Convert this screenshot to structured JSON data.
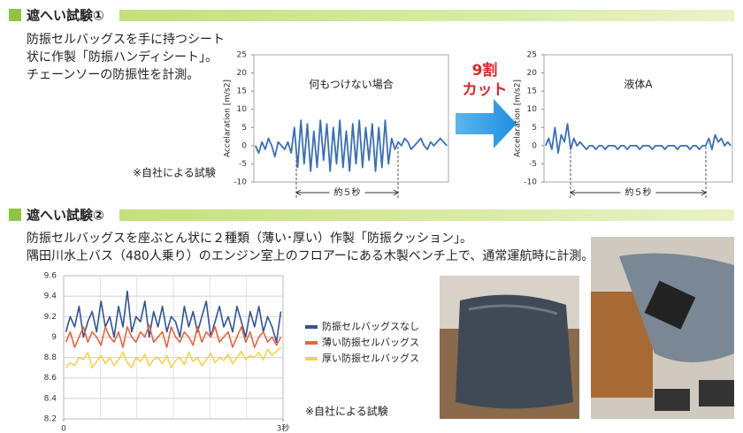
{
  "sections": [
    {
      "title": "遮へい試験①",
      "lines": [
        "防振セルバッグスを手に持つシート",
        "状に作製「防振ハンディシート」。",
        "チェーンソーの防振性を計測。"
      ],
      "note": "※自社による試験"
    },
    {
      "title": "遮へい試験②",
      "lines": [
        "防振セルバッグスを座ぶとん状に２種類（薄い･厚い）作製「防振クッション」。",
        "隅田川水上バス（480人乗り）のエンジン室上のフロアーにある木製ベンチ上で、通常運航時に計測。"
      ],
      "note": "※自社による試験"
    }
  ],
  "callout": [
    "9割",
    "カット"
  ],
  "chart_data": [
    {
      "type": "line",
      "title": "何もつけない場合",
      "y_label": "Accelaration [m/s2]",
      "annotation": "約５秒",
      "ylim": [
        -10,
        25
      ],
      "yticks": [
        25,
        20,
        15,
        10,
        5,
        0,
        -5,
        -10
      ],
      "series": [
        {
          "color": "#3a6fb6",
          "values": [
            0,
            -2,
            1,
            -1,
            2,
            0,
            -3,
            1,
            0,
            -1,
            1,
            -2,
            5,
            -6,
            7,
            -5,
            6,
            -7,
            4,
            -6,
            7,
            -4,
            6,
            -7,
            5,
            -5,
            7,
            -6,
            4,
            -7,
            6,
            -5,
            7,
            -6,
            5,
            -4,
            6,
            -7,
            5,
            -6,
            7,
            -5,
            2,
            -1,
            1,
            0,
            2,
            1,
            -1,
            0,
            1,
            2,
            0,
            -1,
            1,
            0,
            1,
            2,
            1,
            0
          ]
        }
      ]
    },
    {
      "type": "line",
      "title": "液体A",
      "y_label": "Accelaration [m/s2]",
      "annotation": "約５秒",
      "ylim": [
        -10,
        25
      ],
      "yticks": [
        25,
        20,
        15,
        10,
        5,
        0,
        -5,
        -10
      ],
      "series": [
        {
          "color": "#3a6fb6",
          "values": [
            0,
            2,
            -1,
            5,
            -2,
            3,
            1,
            6,
            -1,
            2,
            0,
            1,
            0,
            -1,
            0,
            0,
            -1,
            0,
            0,
            -1,
            0,
            0,
            0,
            -1,
            0,
            0,
            -1,
            0,
            0,
            0,
            -1,
            0,
            0,
            0,
            -1,
            0,
            0,
            0,
            -1,
            0,
            0,
            0,
            -1,
            0,
            0,
            0,
            -1,
            0,
            0,
            -1,
            0,
            0,
            2,
            -1,
            3,
            1,
            2,
            0,
            1,
            0
          ]
        }
      ]
    },
    {
      "type": "line",
      "xlim": [
        0,
        3
      ],
      "xticks": [
        0,
        {
          "value": 3,
          "label": "3秒"
        }
      ],
      "ylim": [
        8.2,
        9.6
      ],
      "yticks": [
        9.6,
        9.4,
        9.2,
        9,
        8.8,
        8.6,
        8.4,
        8.2
      ],
      "grid": true,
      "series": [
        {
          "name": "防振セルバッグスなし",
          "color": "#2f5597",
          "values": [
            9.05,
            9.2,
            9.1,
            9.3,
            9.0,
            9.15,
            9.25,
            9.05,
            9.35,
            9.1,
            9.2,
            9.0,
            9.3,
            9.1,
            9.45,
            9.05,
            9.2,
            9.15,
            9.35,
            9.0,
            9.25,
            9.1,
            9.3,
            9.05,
            9.2,
            9.15,
            9.0,
            9.3,
            9.1,
            9.25,
            9.05,
            9.2,
            9.35,
            9.0,
            9.15,
            9.3,
            9.1,
            9.2,
            9.05,
            9.3,
            9.15,
            9.0,
            9.25,
            9.1,
            9.3,
            9.05,
            9.2,
            9.1,
            8.95,
            9.25
          ]
        },
        {
          "name": "薄い防振セルバッグス",
          "color": "#e8643c",
          "values": [
            8.95,
            9.05,
            8.9,
            9.0,
            9.1,
            8.95,
            9.05,
            9.0,
            8.92,
            9.1,
            9.0,
            8.95,
            9.05,
            8.9,
            9.1,
            9.0,
            8.95,
            9.05,
            9.0,
            9.12,
            8.95,
            9.0,
            9.05,
            8.9,
            9.1,
            9.0,
            8.95,
            9.05,
            9.0,
            8.92,
            9.1,
            8.95,
            9.05,
            9.0,
            9.1,
            8.95,
            9.0,
            9.05,
            8.9,
            9.0,
            9.1,
            8.95,
            9.05,
            8.9,
            9.0,
            9.05,
            8.95,
            9.0,
            8.92,
            9.0
          ]
        },
        {
          "name": "厚い防振セルバッグス",
          "color": "#f5d24a",
          "values": [
            8.7,
            8.75,
            8.72,
            8.8,
            8.78,
            8.85,
            8.7,
            8.76,
            8.82,
            8.74,
            8.8,
            8.72,
            8.78,
            8.85,
            8.75,
            8.7,
            8.8,
            8.76,
            8.83,
            8.72,
            8.78,
            8.8,
            8.74,
            8.82,
            8.7,
            8.77,
            8.8,
            8.73,
            8.85,
            8.76,
            8.8,
            8.72,
            8.78,
            8.84,
            8.75,
            8.8,
            8.77,
            8.83,
            8.74,
            8.8,
            8.86,
            8.78,
            8.82,
            8.8,
            8.85,
            8.78,
            8.88,
            8.82,
            8.86,
            8.9
          ]
        }
      ]
    }
  ]
}
